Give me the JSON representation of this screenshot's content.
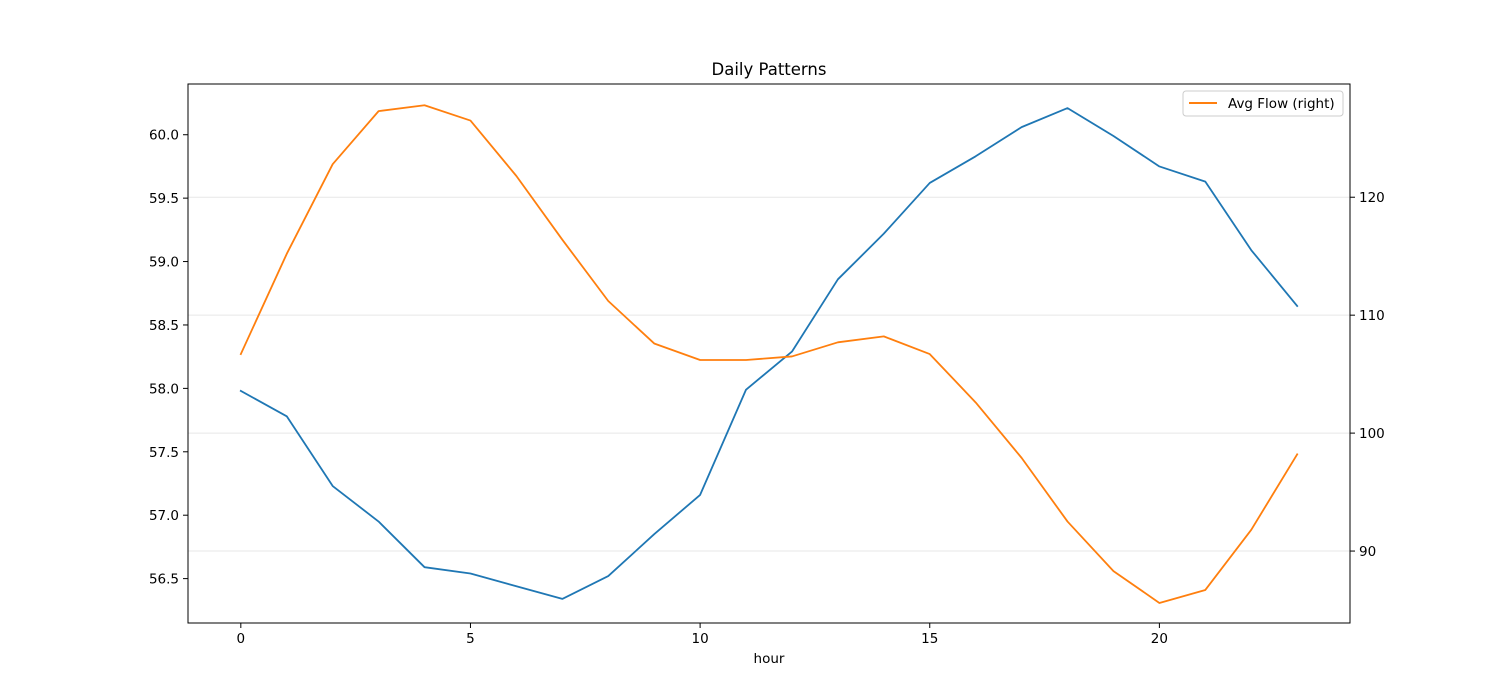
{
  "chart_data": {
    "type": "line",
    "title": "Daily Patterns",
    "xlabel": "hour",
    "ylabel_left": "",
    "ylabel_right": "",
    "xlim": [
      -1.15,
      24.15
    ],
    "ylim_left": [
      56.15,
      60.4
    ],
    "ylim_right": [
      83.9,
      129.6
    ],
    "x_ticks": [
      0,
      5,
      10,
      15,
      20
    ],
    "y_left_ticks": [
      "56.5",
      "57.0",
      "57.5",
      "58.0",
      "58.5",
      "59.0",
      "59.5",
      "60.0"
    ],
    "y_right_ticks": [
      90,
      100,
      110,
      120
    ],
    "grid": "right axis horizontal gridlines",
    "legend": {
      "placement": "upper right",
      "entries": [
        "Avg Flow (right)"
      ]
    },
    "x": [
      0,
      1,
      2,
      3,
      4,
      5,
      6,
      7,
      8,
      9,
      10,
      11,
      12,
      13,
      14,
      15,
      16,
      17,
      18,
      19,
      20,
      21,
      22,
      23
    ],
    "series": [
      {
        "axis": "left",
        "color": "#1f77b4",
        "values": [
          57.98,
          57.78,
          57.23,
          56.95,
          56.59,
          56.54,
          56.44,
          56.34,
          56.52,
          56.85,
          57.16,
          57.99,
          58.29,
          58.86,
          59.22,
          59.62,
          59.83,
          60.06,
          60.21,
          59.99,
          59.75,
          59.63,
          59.09,
          58.65
        ]
      },
      {
        "name": "Avg Flow (right)",
        "axis": "right",
        "color": "#ff7f0e",
        "values": [
          106.7,
          115.2,
          122.8,
          127.3,
          127.8,
          126.5,
          121.8,
          116.4,
          111.2,
          107.6,
          106.2,
          106.2,
          106.5,
          107.7,
          108.2,
          106.7,
          102.6,
          97.9,
          92.5,
          88.3,
          85.6,
          86.7,
          91.8,
          98.2
        ]
      }
    ]
  }
}
